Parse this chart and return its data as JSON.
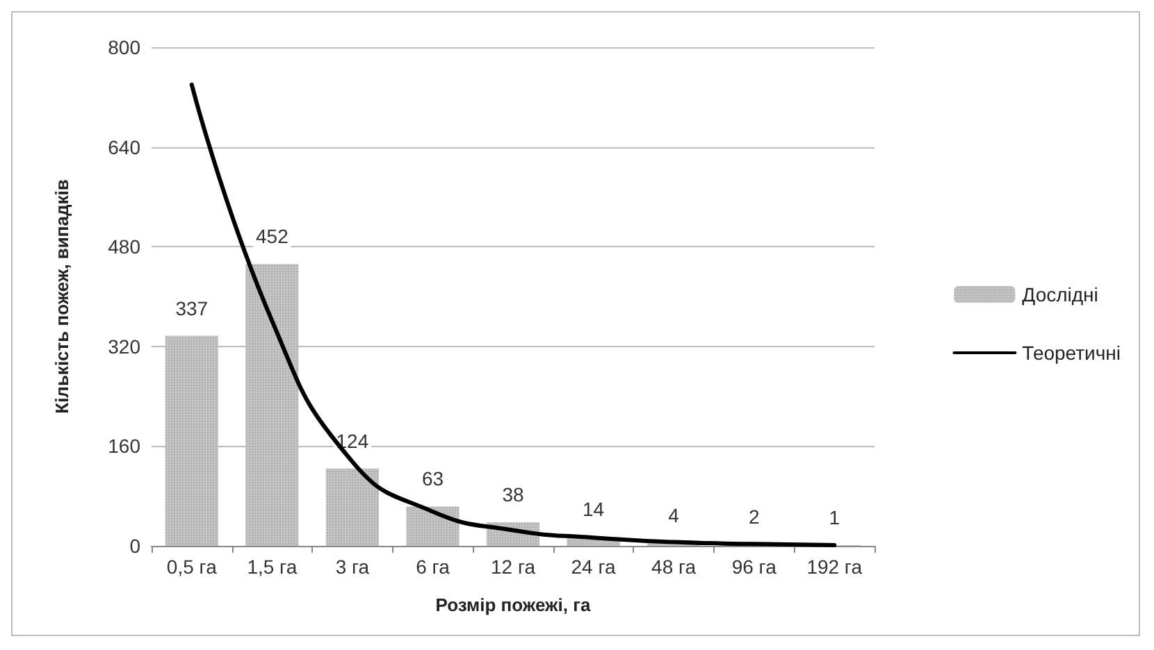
{
  "chart_data": {
    "type": "bar",
    "xlabel": "Розмір пожежі, га",
    "ylabel": "Кількість пожеж, випадків",
    "categories": [
      "0,5 га",
      "1,5 га",
      "3 га",
      "6 га",
      "12 га",
      "24 га",
      "48 га",
      "96 га",
      "192 га"
    ],
    "series": [
      {
        "name": "Дослідні",
        "color": "#c4c4c4",
        "values": [
          337,
          452,
          124,
          63,
          38,
          14,
          4,
          2,
          1
        ],
        "data_labels": true
      },
      {
        "name": "Теоретичні",
        "type": "line",
        "color": "#000000",
        "values": [
          740,
          361,
          135,
          55,
          25,
          13,
          6,
          3,
          1
        ]
      }
    ],
    "ylim": [
      0,
      800
    ],
    "yticks": [
      0,
      160,
      320,
      480,
      640,
      800
    ],
    "grid": "y",
    "legend": "right",
    "marker": "none",
    "line_style": "solid"
  }
}
